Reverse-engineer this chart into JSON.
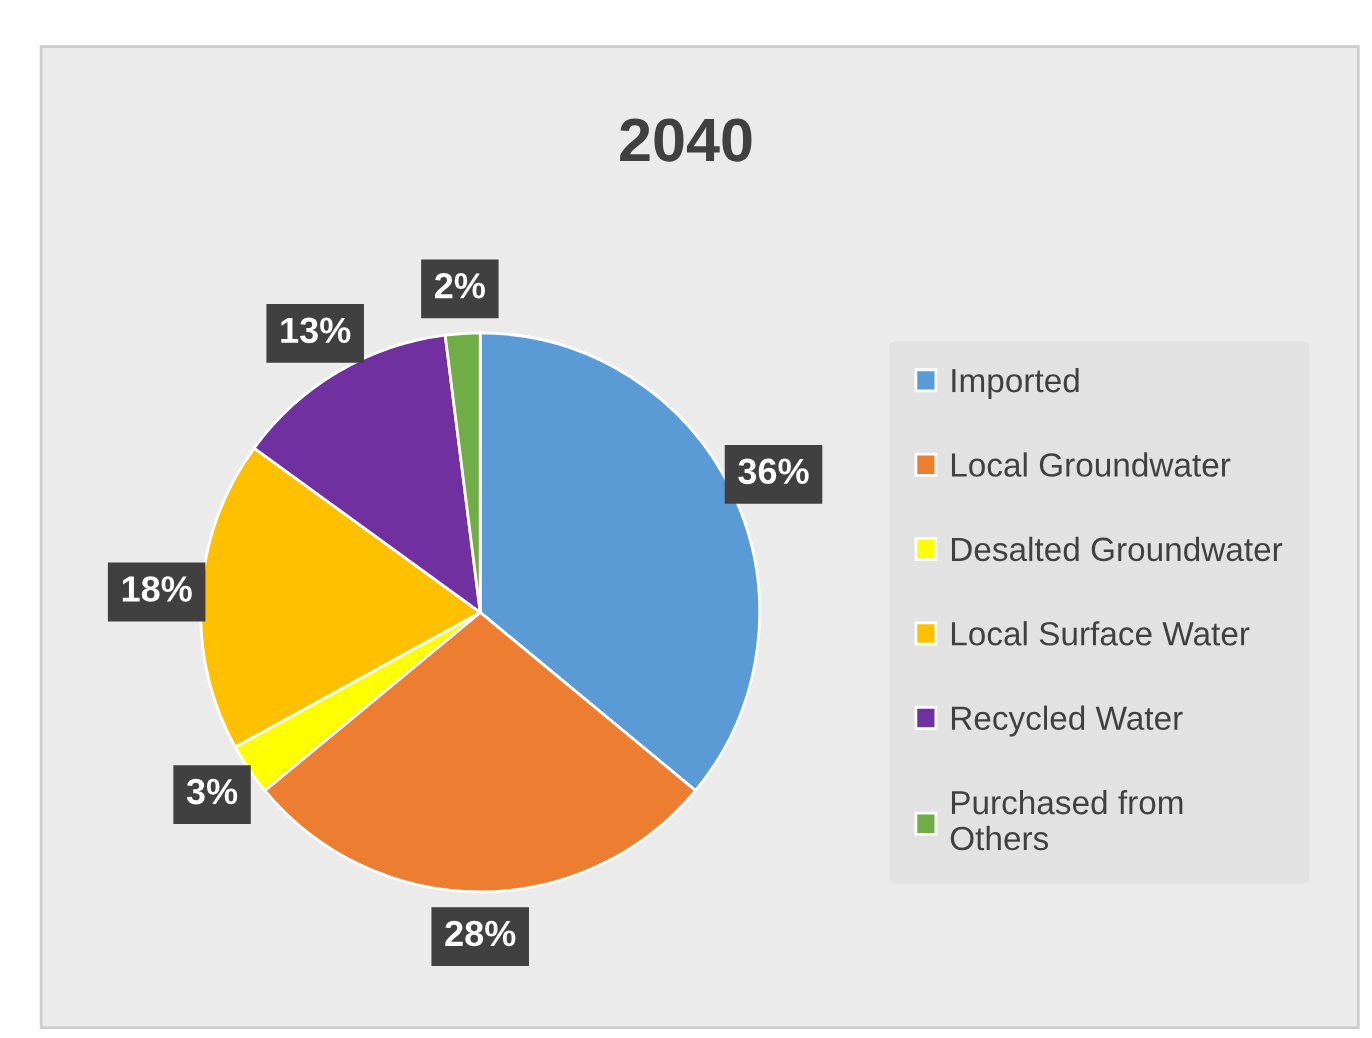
{
  "chart_data": {
    "type": "pie",
    "title": "2040",
    "categories": [
      "Imported",
      "Local Groundwater",
      "Desalted Groundwater",
      "Local Surface Water",
      "Recycled Water",
      "Purchased from Others"
    ],
    "values": [
      36,
      28,
      3,
      18,
      13,
      2
    ],
    "colors": [
      "#5b9bd5",
      "#ed7d31",
      "#ffff00",
      "#ffc000",
      "#7030a0",
      "#70ad47"
    ],
    "value_labels": [
      "36%",
      "28%",
      "3%",
      "18%",
      "13%",
      "2%"
    ],
    "legend": "right"
  }
}
